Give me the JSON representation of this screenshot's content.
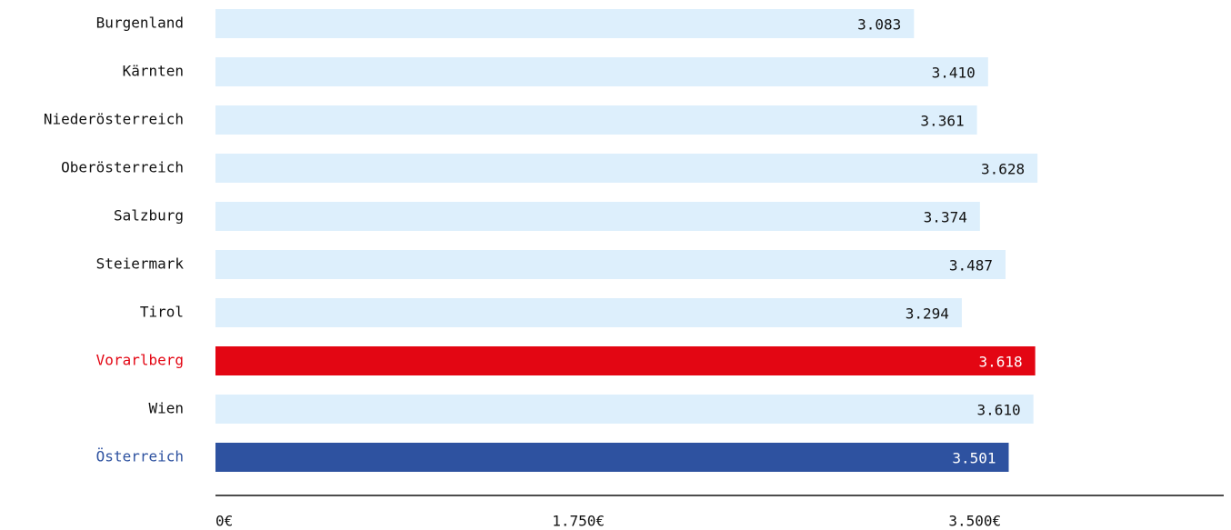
{
  "chart_data": {
    "type": "bar",
    "orientation": "horizontal",
    "categories": [
      "Burgenland",
      "Kärnten",
      "Niederösterreich",
      "Oberösterreich",
      "Salzburg",
      "Steiermark",
      "Tirol",
      "Vorarlberg",
      "Wien",
      "Österreich"
    ],
    "values": [
      3083,
      3410,
      3361,
      3628,
      3374,
      3487,
      3294,
      3618,
      3610,
      3501
    ],
    "value_labels": [
      "3.083",
      "3.410",
      "3.361",
      "3.628",
      "3.374",
      "3.487",
      "3.294",
      "3.618",
      "3.610",
      "3.501"
    ],
    "colors": [
      "#ddeffc",
      "#ddeffc",
      "#ddeffc",
      "#ddeffc",
      "#ddeffc",
      "#ddeffc",
      "#ddeffc",
      "#e30613",
      "#ddeffc",
      "#2e52a0"
    ],
    "xlim": [
      0,
      4450
    ],
    "xticks": [
      {
        "value": 0,
        "label": "0€"
      },
      {
        "value": 1750,
        "label": "1.750€"
      },
      {
        "value": 3500,
        "label": "3.500€"
      }
    ],
    "grid": false
  }
}
